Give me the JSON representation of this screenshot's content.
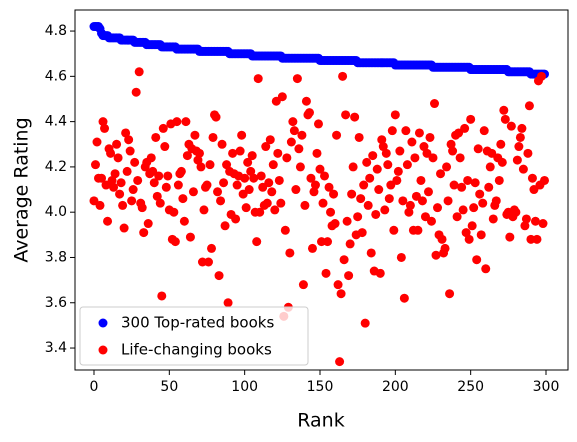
{
  "chart_data": {
    "type": "scatter",
    "x_label": "Rank",
    "y_label": "Average Rating",
    "x": [
      0,
      1,
      2,
      3,
      4,
      5,
      6,
      7,
      8,
      9,
      10,
      11,
      12,
      13,
      14,
      15,
      16,
      17,
      18,
      19,
      20,
      21,
      22,
      23,
      24,
      25,
      26,
      27,
      28,
      29,
      30,
      31,
      32,
      33,
      34,
      35,
      36,
      37,
      38,
      39,
      40,
      41,
      42,
      43,
      44,
      45,
      46,
      47,
      48,
      49,
      50,
      51,
      52,
      53,
      54,
      55,
      56,
      57,
      58,
      59,
      60,
      61,
      62,
      63,
      64,
      65,
      66,
      67,
      68,
      69,
      70,
      71,
      72,
      73,
      74,
      75,
      76,
      77,
      78,
      79,
      80,
      81,
      82,
      83,
      84,
      85,
      86,
      87,
      88,
      89,
      90,
      91,
      92,
      93,
      94,
      95,
      96,
      97,
      98,
      99,
      100,
      101,
      102,
      103,
      104,
      105,
      106,
      107,
      108,
      109,
      110,
      111,
      112,
      113,
      114,
      115,
      116,
      117,
      118,
      119,
      120,
      121,
      122,
      123,
      124,
      125,
      126,
      127,
      128,
      129,
      130,
      131,
      132,
      133,
      134,
      135,
      136,
      137,
      138,
      139,
      140,
      141,
      142,
      143,
      144,
      145,
      146,
      147,
      148,
      149,
      150,
      151,
      152,
      153,
      154,
      155,
      156,
      157,
      158,
      159,
      160,
      161,
      162,
      163,
      164,
      165,
      166,
      167,
      168,
      169,
      170,
      171,
      172,
      173,
      174,
      175,
      176,
      177,
      178,
      179,
      180,
      181,
      182,
      183,
      184,
      185,
      186,
      187,
      188,
      189,
      190,
      191,
      192,
      193,
      194,
      195,
      196,
      197,
      198,
      199,
      200,
      201,
      202,
      203,
      204,
      205,
      206,
      207,
      208,
      209,
      210,
      211,
      212,
      213,
      214,
      215,
      216,
      217,
      218,
      219,
      220,
      221,
      222,
      223,
      224,
      225,
      226,
      227,
      228,
      229,
      230,
      231,
      232,
      233,
      234,
      235,
      236,
      237,
      238,
      239,
      240,
      241,
      242,
      243,
      244,
      245,
      246,
      247,
      248,
      249,
      250,
      251,
      252,
      253,
      254,
      255,
      256,
      257,
      258,
      259,
      260,
      261,
      262,
      263,
      264,
      265,
      266,
      267,
      268,
      269,
      270,
      271,
      272,
      273,
      274,
      275,
      276,
      277,
      278,
      279,
      280,
      281,
      282,
      283,
      284,
      285,
      286,
      287,
      288,
      289,
      290,
      291,
      292,
      293,
      294,
      295,
      296,
      297,
      298,
      299
    ],
    "series": [
      {
        "name": "300 Top-rated books",
        "color": "#0000ff",
        "values": [
          4.82,
          4.82,
          4.82,
          4.82,
          4.81,
          4.79,
          4.78,
          4.78,
          4.78,
          4.78,
          4.77,
          4.77,
          4.77,
          4.77,
          4.77,
          4.77,
          4.77,
          4.77,
          4.76,
          4.76,
          4.76,
          4.76,
          4.76,
          4.76,
          4.76,
          4.76,
          4.76,
          4.75,
          4.75,
          4.75,
          4.75,
          4.75,
          4.75,
          4.75,
          4.75,
          4.74,
          4.74,
          4.74,
          4.74,
          4.74,
          4.74,
          4.74,
          4.74,
          4.74,
          4.74,
          4.73,
          4.73,
          4.73,
          4.73,
          4.73,
          4.73,
          4.73,
          4.73,
          4.73,
          4.73,
          4.72,
          4.72,
          4.72,
          4.72,
          4.72,
          4.72,
          4.72,
          4.72,
          4.72,
          4.72,
          4.72,
          4.72,
          4.72,
          4.72,
          4.72,
          4.71,
          4.71,
          4.71,
          4.71,
          4.71,
          4.71,
          4.71,
          4.71,
          4.71,
          4.71,
          4.71,
          4.71,
          4.71,
          4.71,
          4.71,
          4.71,
          4.71,
          4.71,
          4.71,
          4.71,
          4.7,
          4.7,
          4.7,
          4.7,
          4.7,
          4.7,
          4.7,
          4.7,
          4.7,
          4.7,
          4.7,
          4.7,
          4.7,
          4.7,
          4.7,
          4.69,
          4.69,
          4.69,
          4.69,
          4.69,
          4.69,
          4.69,
          4.69,
          4.69,
          4.69,
          4.69,
          4.69,
          4.69,
          4.69,
          4.69,
          4.69,
          4.69,
          4.69,
          4.69,
          4.69,
          4.68,
          4.68,
          4.68,
          4.68,
          4.68,
          4.68,
          4.68,
          4.68,
          4.68,
          4.68,
          4.68,
          4.68,
          4.68,
          4.68,
          4.68,
          4.68,
          4.68,
          4.68,
          4.68,
          4.68,
          4.68,
          4.68,
          4.68,
          4.68,
          4.68,
          4.67,
          4.67,
          4.67,
          4.67,
          4.67,
          4.67,
          4.67,
          4.67,
          4.67,
          4.67,
          4.67,
          4.67,
          4.67,
          4.67,
          4.67,
          4.67,
          4.67,
          4.67,
          4.67,
          4.67,
          4.67,
          4.67,
          4.67,
          4.67,
          4.67,
          4.66,
          4.66,
          4.66,
          4.66,
          4.66,
          4.66,
          4.66,
          4.66,
          4.66,
          4.66,
          4.66,
          4.66,
          4.66,
          4.66,
          4.66,
          4.66,
          4.66,
          4.66,
          4.66,
          4.66,
          4.66,
          4.66,
          4.66,
          4.66,
          4.66,
          4.65,
          4.65,
          4.65,
          4.65,
          4.65,
          4.65,
          4.65,
          4.65,
          4.65,
          4.65,
          4.65,
          4.65,
          4.65,
          4.65,
          4.65,
          4.65,
          4.65,
          4.65,
          4.65,
          4.65,
          4.65,
          4.65,
          4.65,
          4.65,
          4.65,
          4.64,
          4.64,
          4.64,
          4.64,
          4.64,
          4.64,
          4.64,
          4.64,
          4.64,
          4.64,
          4.64,
          4.64,
          4.64,
          4.64,
          4.64,
          4.64,
          4.64,
          4.64,
          4.64,
          4.64,
          4.64,
          4.64,
          4.64,
          4.64,
          4.64,
          4.63,
          4.63,
          4.63,
          4.63,
          4.63,
          4.63,
          4.63,
          4.63,
          4.63,
          4.63,
          4.63,
          4.63,
          4.63,
          4.63,
          4.63,
          4.63,
          4.63,
          4.63,
          4.63,
          4.63,
          4.63,
          4.63,
          4.63,
          4.63,
          4.63,
          4.62,
          4.62,
          4.62,
          4.62,
          4.62,
          4.62,
          4.62,
          4.62,
          4.62,
          4.62,
          4.62,
          4.62,
          4.62,
          4.62,
          4.62,
          4.61,
          4.61,
          4.61,
          4.61,
          4.61,
          4.61,
          4.61,
          4.61,
          4.61,
          4.61
        ]
      },
      {
        "name": "Life-changing books",
        "color": "#ff0000",
        "values": [
          4.05,
          4.21,
          4.31,
          4.15,
          4.03,
          4.15,
          4.4,
          4.37,
          4.12,
          3.96,
          4.28,
          4.26,
          4.14,
          4.11,
          4.17,
          4.3,
          4.24,
          4.08,
          4.13,
          4.03,
          3.93,
          4.35,
          4.18,
          4.32,
          4.27,
          4.05,
          4.1,
          4.22,
          4.53,
          4.14,
          4.62,
          4.04,
          4.02,
          3.91,
          4.2,
          4.22,
          3.95,
          4.17,
          4.24,
          4.18,
          4.13,
          4.33,
          4.07,
          4.16,
          4.04,
          3.63,
          4.37,
          4.29,
          4.11,
          4.16,
          4.01,
          4.39,
          3.88,
          4.0,
          3.87,
          4.4,
          4.12,
          4.17,
          4.18,
          4.06,
          3.96,
          4.4,
          4.25,
          4.3,
          3.89,
          4.28,
          4.09,
          4.34,
          4.27,
          4.23,
          4.26,
          4.2,
          3.78,
          4.01,
          4.11,
          4.12,
          3.78,
          4.21,
          3.84,
          4.33,
          4.43,
          4.42,
          4.09,
          3.72,
          4.05,
          4.3,
          4.13,
          3.94,
          4.21,
          3.6,
          4.18,
          3.99,
          4.26,
          4.17,
          3.97,
          4.12,
          4.16,
          4.27,
          4.34,
          4.08,
          4.15,
          4.02,
          4.22,
          4.1,
          4.18,
          4.25,
          4.15,
          4.0,
          3.87,
          4.59,
          4.0,
          4.16,
          4.11,
          4.03,
          4.29,
          4.04,
          4.13,
          4.32,
          4.09,
          4.21,
          4.01,
          4.49,
          4.26,
          4.14,
          4.04,
          4.51,
          3.54,
          3.92,
          4.24,
          3.58,
          3.82,
          4.31,
          4.4,
          4.36,
          4.1,
          4.59,
          4.28,
          4.2,
          4.34,
          3.68,
          4.03,
          4.49,
          4.43,
          4.44,
          4.15,
          3.84,
          4.09,
          4.12,
          4.26,
          4.39,
          4.19,
          3.87,
          4.04,
          4.16,
          3.73,
          3.87,
          4.11,
          4.0,
          3.94,
          4.08,
          3.95,
          4.34,
          3.68,
          3.34,
          3.64,
          4.6,
          3.79,
          4.43,
          3.96,
          3.72,
          3.86,
          4.08,
          4.2,
          4.42,
          3.9,
          3.98,
          4.33,
          4.06,
          3.91,
          4.12,
          3.51,
          4.22,
          4.03,
          4.15,
          3.82,
          4.25,
          3.74,
          3.99,
          4.19,
          4.1,
          3.73,
          4.32,
          4.29,
          4.01,
          4.26,
          4.21,
          4.06,
          4.12,
          4.36,
          3.92,
          4.43,
          4.14,
          4.18,
          4.27,
          3.8,
          4.05,
          3.62,
          4.36,
          4.21,
          4.0,
          4.03,
          4.31,
          3.92,
          4.24,
          4.07,
          3.92,
          4.35,
          4.14,
          4.05,
          4.29,
          3.98,
          4.26,
          4.09,
          4.33,
          3.96,
          4.24,
          4.48,
          3.81,
          4.02,
          3.9,
          4.17,
          3.88,
          3.82,
          3.84,
          4.2,
          4.05,
          3.64,
          4.3,
          4.27,
          4.12,
          4.34,
          3.98,
          4.35,
          4.24,
          4.11,
          4.01,
          4.37,
          3.91,
          4.14,
          3.88,
          4.41,
          3.94,
          4.02,
          4.13,
          3.79,
          4.28,
          4.08,
          3.9,
          4.04,
          4.36,
          3.75,
          4.27,
          4.11,
          4.2,
          4.26,
          3.97,
          4.03,
          4.05,
          4.24,
          4.14,
          4.3,
          4.22,
          4.45,
          4.41,
          3.99,
          4.0,
          3.89,
          4.38,
          3.98,
          4.01,
          4.0,
          4.23,
          4.29,
          4.33,
          4.37,
          4.19,
          3.94,
          3.97,
          4.26,
          4.47,
          3.88,
          4.15,
          4.1,
          3.96,
          3.88,
          4.58,
          4.12,
          4.6,
          3.95,
          4.14
        ]
      }
    ],
    "xlim": [
      -12.6,
      314.6
    ],
    "xticks": [
      0,
      50,
      100,
      150,
      200,
      250,
      300
    ],
    "ylim": [
      3.303,
      4.893
    ],
    "yticks": [
      3.4,
      3.6,
      3.8,
      {
        "value": 4,
        "label": "4.0"
      },
      4.2,
      4.4,
      4.6,
      4.8
    ],
    "grid": false,
    "legend": "lower left"
  }
}
